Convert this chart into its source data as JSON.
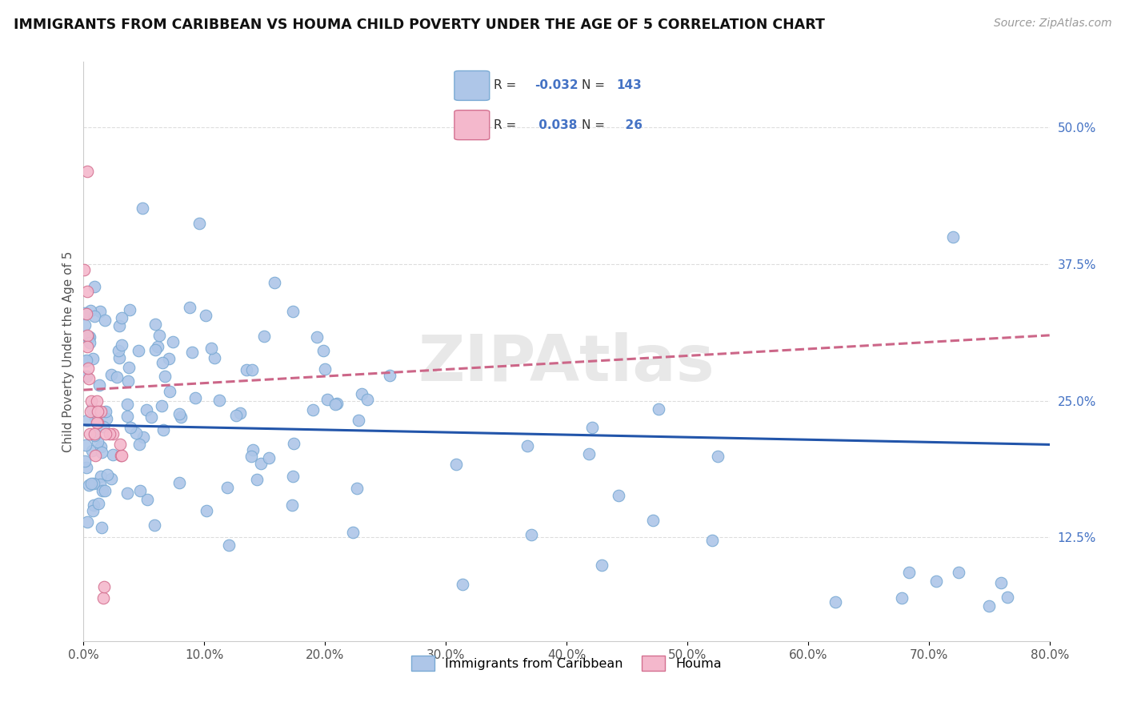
{
  "title": "IMMIGRANTS FROM CARIBBEAN VS HOUMA CHILD POVERTY UNDER THE AGE OF 5 CORRELATION CHART",
  "source": "Source: ZipAtlas.com",
  "ylabel": "Child Poverty Under the Age of 5",
  "yticks": [
    0.125,
    0.25,
    0.375,
    0.5
  ],
  "ytick_labels": [
    "12.5%",
    "25.0%",
    "37.5%",
    "50.0%"
  ],
  "xmin": 0.0,
  "xmax": 0.8,
  "ymin": 0.03,
  "ymax": 0.56,
  "series": [
    {
      "name": "Immigrants from Caribbean",
      "R": -0.032,
      "N": 143,
      "color": "#aec6e8",
      "edge_color": "#7aaad4",
      "trend_color": "#2255aa",
      "trend_style": "solid",
      "trend_y0": 0.228,
      "trend_y1": 0.21
    },
    {
      "name": "Houma",
      "R": 0.038,
      "N": 26,
      "color": "#f4b8cc",
      "edge_color": "#d47090",
      "trend_color": "#cc6688",
      "trend_style": "dashed",
      "trend_y0": 0.26,
      "trend_y1": 0.31
    }
  ],
  "watermark": "ZIPAtlas",
  "background_color": "#ffffff",
  "grid_color": "#dddddd"
}
